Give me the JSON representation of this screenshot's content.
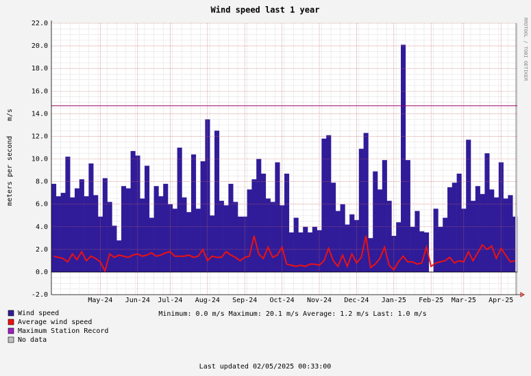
{
  "chart_data": {
    "type": "bar",
    "title": "Wind speed last 1 year",
    "y_label": "meters per second",
    "y_unit": "m/s",
    "watermark": "RRDTOOL / TOBI OETIKER",
    "stats": "Minimum: 0.0 m/s  Maximum: 20.1 m/s  Average: 1.2 m/s  Last: 1.0 m/s",
    "footer": "Last updated 02/05/2025 00:33:00",
    "categories": [
      null,
      null,
      null,
      null,
      null,
      null,
      null,
      null,
      null,
      null,
      "May-24",
      null,
      null,
      null,
      null,
      null,
      null,
      null,
      "Jun-24",
      null,
      null,
      null,
      null,
      null,
      null,
      "Jul-24",
      null,
      null,
      null,
      null,
      null,
      null,
      null,
      "Aug-24",
      null,
      null,
      null,
      null,
      null,
      null,
      null,
      "Sep-24",
      null,
      null,
      null,
      null,
      null,
      null,
      null,
      "Oct-24",
      null,
      null,
      null,
      null,
      null,
      null,
      null,
      "Nov-24",
      null,
      null,
      null,
      null,
      null,
      null,
      null,
      "Dec-24",
      null,
      null,
      null,
      null,
      null,
      null,
      null,
      "Jan-25",
      null,
      null,
      null,
      null,
      null,
      null,
      null,
      "Feb-25",
      null,
      null,
      null,
      null,
      null,
      null,
      "Mar-25",
      null,
      null,
      null,
      null,
      null,
      null,
      null,
      "Apr-25",
      null,
      null,
      null
    ],
    "series": [
      {
        "name": "Wind speed",
        "color": "#301c99",
        "type": "bar",
        "values": [
          7.8,
          6.7,
          7.0,
          10.2,
          6.6,
          7.4,
          8.2,
          6.7,
          9.6,
          6.8,
          4.9,
          8.3,
          6.2,
          4.1,
          2.8,
          7.6,
          7.4,
          10.7,
          10.3,
          6.5,
          9.4,
          4.8,
          7.6,
          6.7,
          7.8,
          6.0,
          5.6,
          11.0,
          6.6,
          5.3,
          10.4,
          5.6,
          9.8,
          13.5,
          5.0,
          12.5,
          6.3,
          5.9,
          7.8,
          6.2,
          4.9,
          4.9,
          7.3,
          8.2,
          10.0,
          8.7,
          6.5,
          6.2,
          9.7,
          5.9,
          8.7,
          3.5,
          4.8,
          3.5,
          4.0,
          3.5,
          4.0,
          3.7,
          11.8,
          12.1,
          7.9,
          5.4,
          6.0,
          4.2,
          5.1,
          4.6,
          10.9,
          12.3,
          3.0,
          8.9,
          7.3,
          9.9,
          6.3,
          3.2,
          4.4,
          20.1,
          9.9,
          4.0,
          5.4,
          3.6,
          3.5,
          0,
          5.6,
          4.0,
          4.8,
          7.5,
          7.9,
          8.7,
          5.6,
          11.7,
          6.3,
          7.6,
          6.9,
          10.5,
          7.3,
          6.6,
          9.7,
          6.5,
          6.8,
          4.9
        ]
      },
      {
        "name": "Average wind speed",
        "color": "#ee1111",
        "type": "line",
        "values": [
          1.4,
          1.3,
          1.2,
          0.9,
          1.6,
          1.1,
          1.8,
          1.0,
          1.4,
          1.2,
          0.9,
          0.1,
          1.6,
          1.3,
          1.5,
          1.4,
          1.3,
          1.5,
          1.6,
          1.4,
          1.5,
          1.7,
          1.4,
          1.5,
          1.7,
          1.8,
          1.4,
          1.4,
          1.4,
          1.5,
          1.3,
          1.4,
          2.0,
          1.0,
          1.4,
          1.3,
          1.3,
          1.8,
          1.5,
          1.3,
          1.0,
          1.3,
          1.4,
          3.2,
          1.6,
          1.2,
          2.2,
          1.3,
          1.5,
          2.2,
          0.7,
          0.6,
          0.5,
          0.6,
          0.5,
          0.7,
          0.7,
          0.6,
          1.0,
          2.1,
          1.0,
          0.5,
          1.5,
          0.5,
          1.6,
          0.8,
          1.3,
          3.2,
          0.4,
          0.7,
          1.2,
          2.2,
          0.6,
          0.2,
          0.9,
          1.4,
          0.9,
          0.9,
          0.7,
          0.8,
          2.2,
          0.5,
          0.8,
          0.9,
          1.0,
          1.3,
          0.8,
          1.0,
          0.9,
          1.8,
          1.0,
          1.7,
          2.4,
          2.0,
          2.3,
          1.2,
          2.1,
          1.5,
          0.9,
          1.0
        ]
      }
    ],
    "reference_line": {
      "name": "Maximum Station Record",
      "color": "#990066",
      "value": 14.7
    },
    "no_data": {
      "name": "No data",
      "color": "#c0c0c0"
    },
    "ylim": [
      -2,
      22
    ],
    "yticks": [
      {
        "value": -2,
        "label": "-2.0"
      },
      {
        "value": 0,
        "label": "0.0"
      },
      {
        "value": 2,
        "label": "2.0"
      },
      {
        "value": 4,
        "label": "4.0"
      },
      {
        "value": 6,
        "label": "6.0"
      },
      {
        "value": 8,
        "label": "8.0"
      },
      {
        "value": 10,
        "label": "10.0"
      },
      {
        "value": 12,
        "label": "12.0"
      },
      {
        "value": 14,
        "label": "14.0"
      },
      {
        "value": 16,
        "label": "16.0"
      },
      {
        "value": 18,
        "label": "18.0"
      },
      {
        "value": 20,
        "label": "20.0"
      },
      {
        "value": 22,
        "label": "22.0"
      }
    ],
    "grid": true
  }
}
